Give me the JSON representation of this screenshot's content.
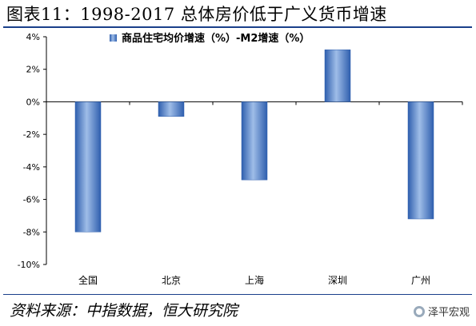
{
  "figure": {
    "title": "图表11：1998-2017 总体房价低于广义货币增速",
    "source": "资料来源：中指数据，恒大研究院",
    "watermark": "泽平宏观"
  },
  "colors": {
    "bar": "#4a7cc8",
    "bar_light": "#9fbde8",
    "rule": "#1a3f8a"
  },
  "chart_data": {
    "type": "bar",
    "categories": [
      "全国",
      "北京",
      "上海",
      "深圳",
      "广州"
    ],
    "series": [
      {
        "name": "商品住宅均价增速（%）-M2增速（%）",
        "values": [
          -8.0,
          -0.9,
          -4.8,
          3.2,
          -7.2
        ]
      }
    ],
    "ylim": [
      -10,
      4
    ],
    "yticks": [
      4,
      2,
      0,
      -2,
      -4,
      -6,
      -8,
      -10
    ],
    "ytick_labels": [
      "4%",
      "2%",
      "0%",
      "-2%",
      "-4%",
      "-6%",
      "-8%",
      "-10%"
    ],
    "legend": "top",
    "grid": false
  }
}
